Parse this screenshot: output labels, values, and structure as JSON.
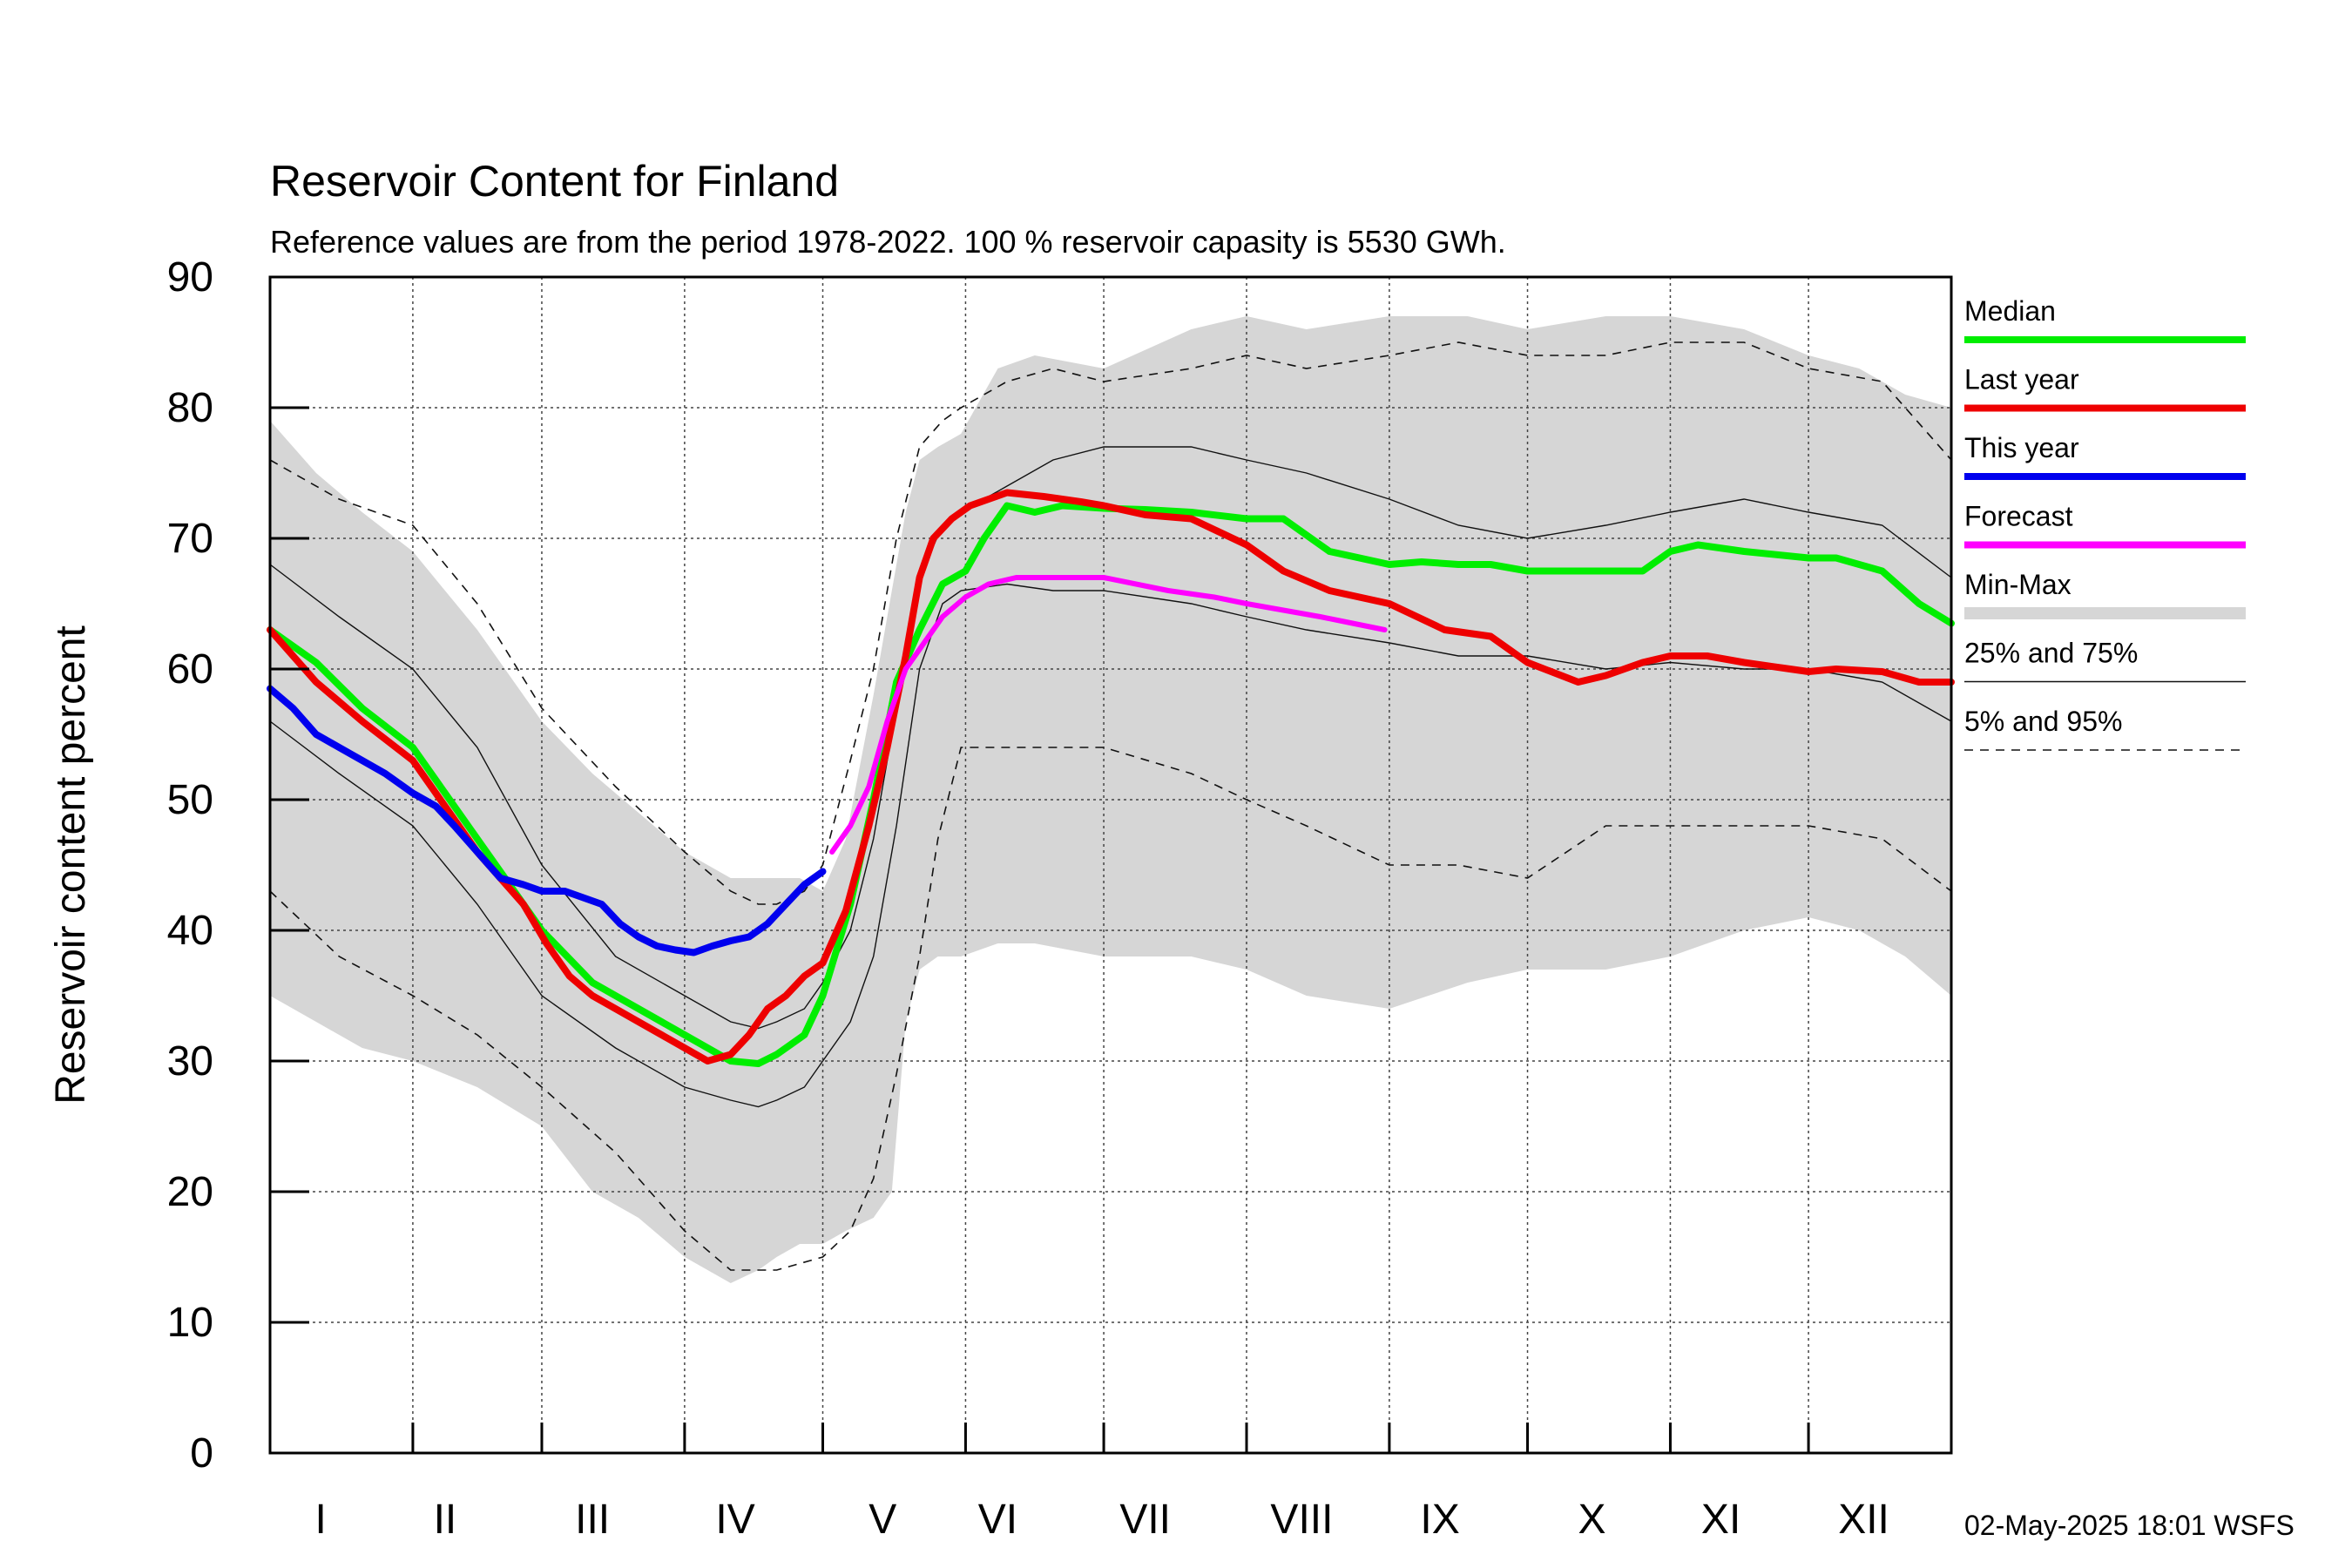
{
  "chart_data": {
    "type": "line",
    "title": "Reservoir Content for Finland",
    "subtitle": "Reference values are from the period 1978-2022. 100 % reservoir capasity is 5530 GWh.",
    "ylabel": "Reservoir content percent",
    "xlabel": "",
    "ylim": [
      0,
      90
    ],
    "xlim": [
      0,
      365
    ],
    "y_ticks": [
      0,
      10,
      20,
      30,
      40,
      50,
      60,
      70,
      80,
      90
    ],
    "month_boundaries": [
      31,
      59,
      90,
      120,
      151,
      181,
      212,
      243,
      273,
      304,
      334
    ],
    "month_labels": [
      "I",
      "II",
      "III",
      "IV",
      "V",
      "VI",
      "VII",
      "VIII",
      "IX",
      "X",
      "XI",
      "XII"
    ],
    "month_label_days": [
      11,
      38,
      70,
      101,
      133,
      158,
      190,
      224,
      254,
      287,
      315,
      346
    ],
    "grid": true,
    "legend_position": "right",
    "timestamp": "02-May-2025 18:01 WSFS",
    "colors": {
      "median": "#00ee00",
      "last_year": "#ee0000",
      "this_year": "#0000ee",
      "forecast": "#ff00ff",
      "minmax": "#d6d6d6",
      "quartiles": "#000000"
    },
    "legend": [
      {
        "label": "Median",
        "key": "median",
        "style": "thick"
      },
      {
        "label": "Last year",
        "key": "last_year",
        "style": "thick"
      },
      {
        "label": "This year",
        "key": "this_year",
        "style": "thick"
      },
      {
        "label": "Forecast",
        "key": "forecast",
        "style": "thick"
      },
      {
        "label": "Min-Max",
        "key": "minmax",
        "style": "band"
      },
      {
        "label": "25% and 75%",
        "key": "quartiles",
        "style": "thin"
      },
      {
        "label": "5% and 95%",
        "key": "quartiles",
        "style": "dashed"
      }
    ],
    "bands": {
      "min_max": {
        "x": [
          0,
          10,
          20,
          31,
          45,
          59,
          70,
          80,
          90,
          100,
          106,
          110,
          115,
          120,
          125,
          131,
          135,
          138,
          141,
          145,
          150,
          158,
          166,
          181,
          200,
          212,
          225,
          243,
          260,
          273,
          290,
          304,
          320,
          334,
          345,
          355,
          365
        ],
        "max": [
          79,
          75,
          72,
          69,
          63,
          56,
          52,
          49,
          46,
          44,
          44,
          44,
          44,
          43,
          47,
          58,
          66,
          72,
          76,
          77,
          78,
          83,
          84,
          83,
          86,
          87,
          86,
          87,
          87,
          86,
          87,
          87,
          86,
          84,
          83,
          81,
          80
        ],
        "min": [
          35,
          33,
          31,
          30,
          28,
          25,
          20,
          18,
          15,
          13,
          14,
          15,
          16,
          16,
          17,
          18,
          20,
          33,
          37,
          38,
          38,
          39,
          39,
          38,
          38,
          37,
          35,
          34,
          36,
          37,
          37,
          38,
          40,
          41,
          40,
          38,
          35
        ]
      },
      "p5": {
        "x": [
          0,
          15,
          31,
          45,
          59,
          75,
          90,
          100,
          110,
          120,
          126,
          131,
          136,
          141,
          145,
          150,
          160,
          181,
          200,
          212,
          225,
          243,
          258,
          273,
          290,
          304,
          320,
          334,
          350,
          365
        ],
        "y": [
          43,
          38,
          35,
          32,
          28,
          23,
          17,
          14,
          14,
          15,
          17,
          21,
          29,
          38,
          47,
          54,
          54,
          54,
          52,
          50,
          48,
          45,
          45,
          44,
          48,
          48,
          48,
          48,
          47,
          43
        ]
      },
      "p25": {
        "x": [
          0,
          15,
          31,
          45,
          59,
          75,
          90,
          100,
          106,
          110,
          116,
          120,
          126,
          131,
          136,
          141,
          146,
          150,
          160,
          170,
          181,
          200,
          212,
          225,
          243,
          258,
          273,
          290,
          304,
          320,
          334,
          350,
          365
        ],
        "y": [
          56,
          52,
          48,
          42,
          35,
          31,
          28,
          27,
          26.5,
          27,
          28,
          30,
          33,
          38,
          48,
          60,
          65,
          66,
          66.5,
          66,
          66,
          65,
          64,
          63,
          62,
          61,
          61,
          60,
          60.5,
          60,
          60,
          59,
          56
        ]
      },
      "p75": {
        "x": [
          0,
          15,
          31,
          45,
          59,
          75,
          90,
          100,
          106,
          110,
          116,
          120,
          126,
          131,
          136,
          141,
          146,
          150,
          160,
          170,
          181,
          200,
          212,
          225,
          243,
          258,
          273,
          290,
          304,
          320,
          334,
          350,
          365
        ],
        "y": [
          68,
          64,
          60,
          54,
          45,
          38,
          35,
          33,
          32.5,
          33,
          34,
          36,
          40,
          47,
          57,
          67,
          71,
          72,
          74,
          76,
          77,
          77,
          76,
          75,
          73,
          71,
          70,
          71,
          72,
          73,
          72,
          71,
          67
        ]
      },
      "p95": {
        "x": [
          0,
          15,
          31,
          45,
          59,
          75,
          90,
          100,
          106,
          110,
          116,
          120,
          126,
          131,
          136,
          141,
          146,
          150,
          160,
          170,
          181,
          200,
          212,
          225,
          243,
          258,
          273,
          290,
          304,
          320,
          334,
          350,
          365
        ],
        "y": [
          76,
          73,
          71,
          65,
          57,
          51,
          46,
          43,
          42,
          42,
          43,
          45,
          53,
          60,
          70,
          77,
          79,
          80,
          82,
          83,
          82,
          83,
          84,
          83,
          84,
          85,
          84,
          84,
          85,
          85,
          83,
          82,
          76
        ]
      }
    },
    "series": [
      {
        "name": "Median",
        "key": "median",
        "x": [
          0,
          10,
          20,
          31,
          45,
          59,
          70,
          80,
          90,
          95,
          100,
          106,
          110,
          116,
          120,
          126,
          131,
          136,
          141,
          146,
          151,
          155,
          160,
          166,
          172,
          181,
          190,
          200,
          212,
          220,
          230,
          243,
          250,
          258,
          265,
          273,
          280,
          290,
          298,
          304,
          310,
          320,
          334,
          340,
          350,
          358,
          365
        ],
        "y": [
          63,
          60.5,
          57,
          54,
          47,
          40,
          36,
          34,
          32,
          31,
          30,
          29.8,
          30.5,
          32,
          35,
          42,
          50,
          59,
          63,
          66.5,
          67.5,
          70,
          72.5,
          72,
          72.5,
          72.3,
          72.2,
          72,
          71.5,
          71.5,
          69,
          68,
          68.2,
          68,
          68,
          67.5,
          67.5,
          67.5,
          67.5,
          69,
          69.5,
          69,
          68.5,
          68.5,
          67.5,
          65,
          63.5
        ]
      },
      {
        "name": "Last year",
        "key": "last_year",
        "x": [
          0,
          10,
          20,
          31,
          45,
          55,
          60,
          65,
          70,
          75,
          80,
          85,
          90,
          95,
          100,
          104,
          108,
          112,
          116,
          120,
          125,
          130,
          134,
          138,
          141,
          144,
          148,
          152,
          156,
          160,
          168,
          176,
          181,
          190,
          200,
          212,
          220,
          230,
          243,
          255,
          265,
          273,
          284,
          290,
          298,
          304,
          312,
          320,
          330,
          334,
          340,
          350,
          358,
          365
        ],
        "y": [
          63,
          59,
          56,
          53,
          46,
          42,
          39,
          36.5,
          35,
          34,
          33,
          32,
          31,
          30,
          30.5,
          32,
          34,
          35,
          36.5,
          37.5,
          41.5,
          48,
          54,
          61,
          67,
          70,
          71.5,
          72.5,
          73,
          73.5,
          73.2,
          72.8,
          72.5,
          71.8,
          71.5,
          69.5,
          67.5,
          66,
          65,
          63,
          62.5,
          60.5,
          59,
          59.5,
          60.5,
          61,
          61,
          60.5,
          60,
          59.8,
          60,
          59.8,
          59,
          59
        ]
      },
      {
        "name": "This year",
        "key": "this_year",
        "x": [
          0,
          5,
          10,
          15,
          20,
          25,
          31,
          36,
          40,
          45,
          50,
          55,
          59,
          64,
          68,
          72,
          76,
          80,
          84,
          88,
          92,
          96,
          100,
          104,
          108,
          112,
          116,
          120
        ],
        "y": [
          58.5,
          57,
          55,
          54,
          53,
          52,
          50.5,
          49.5,
          48,
          46,
          44,
          43.5,
          43,
          43,
          42.5,
          42,
          40.5,
          39.5,
          38.8,
          38.5,
          38.3,
          38.8,
          39.2,
          39.5,
          40.5,
          42,
          43.5,
          44.5
        ]
      },
      {
        "name": "Forecast",
        "key": "forecast",
        "x": [
          122,
          126,
          130,
          134,
          138,
          142,
          146,
          151,
          156,
          162,
          170,
          181,
          195,
          205,
          212,
          220,
          228,
          235,
          242
        ],
        "y": [
          46,
          48,
          51,
          56,
          60,
          62,
          64,
          65.5,
          66.5,
          67,
          67,
          67,
          66,
          65.5,
          65,
          64.5,
          64,
          63.5,
          63
        ]
      }
    ]
  }
}
